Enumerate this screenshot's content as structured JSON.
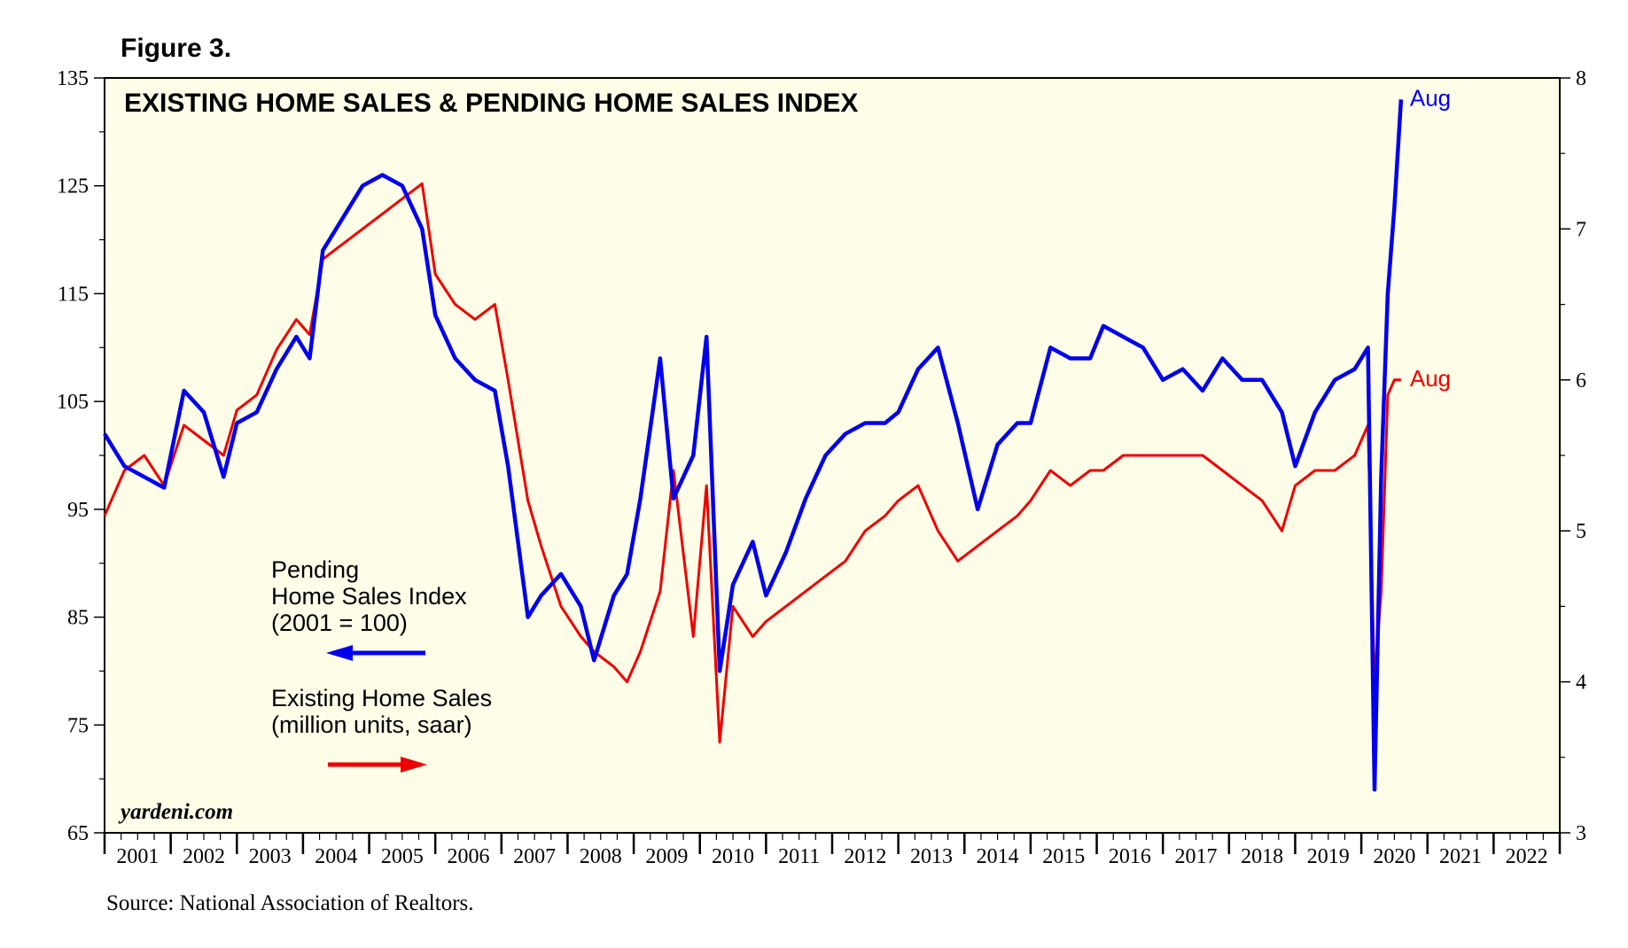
{
  "figure_label": "Figure 3.",
  "source": "Source: National Association of Realtors.",
  "colors": {
    "pending": "#0000ee",
    "existing": "#ee0000",
    "plot_bg": "#fefde8",
    "axis": "#000000"
  },
  "chart_data": {
    "type": "line",
    "title": "EXISTING HOME SALES & PENDING HOME SALES INDEX",
    "watermark": "yardeni.com",
    "x_range": [
      2001,
      2023
    ],
    "x_tick_labels": [
      "2001",
      "2002",
      "2003",
      "2004",
      "2005",
      "2006",
      "2007",
      "2008",
      "2009",
      "2010",
      "2011",
      "2012",
      "2013",
      "2014",
      "2015",
      "2016",
      "2017",
      "2018",
      "2019",
      "2020",
      "2021",
      "2022"
    ],
    "y_left": {
      "range": [
        65,
        135
      ],
      "ticks": [
        65,
        75,
        85,
        95,
        105,
        115,
        125,
        135
      ]
    },
    "y_right": {
      "range": [
        3,
        8
      ],
      "ticks": [
        3,
        4,
        5,
        6,
        7,
        8
      ]
    },
    "legend": [
      {
        "lines": [
          "Pending",
          "Home Sales Index",
          "(2001 = 100)"
        ],
        "arrow": "left"
      },
      {
        "lines": [
          "Existing Home Sales",
          "(million units, saar)"
        ],
        "arrow": "right"
      }
    ],
    "series": [
      {
        "name": "Pending Home Sales Index (2001 = 100)",
        "axis": "left",
        "end_label": "Aug",
        "x": [
          2001.0,
          2001.3,
          2001.6,
          2001.9,
          2002.2,
          2002.5,
          2002.8,
          2003.0,
          2003.3,
          2003.6,
          2003.9,
          2004.1,
          2004.3,
          2004.6,
          2004.9,
          2005.2,
          2005.5,
          2005.8,
          2006.0,
          2006.3,
          2006.6,
          2006.9,
          2007.1,
          2007.4,
          2007.6,
          2007.9,
          2008.2,
          2008.4,
          2008.7,
          2008.9,
          2009.1,
          2009.4,
          2009.6,
          2009.9,
          2010.1,
          2010.3,
          2010.5,
          2010.8,
          2011.0,
          2011.3,
          2011.6,
          2011.9,
          2012.2,
          2012.5,
          2012.8,
          2013.0,
          2013.3,
          2013.6,
          2013.9,
          2014.2,
          2014.5,
          2014.8,
          2015.0,
          2015.3,
          2015.6,
          2015.9,
          2016.1,
          2016.4,
          2016.7,
          2017.0,
          2017.3,
          2017.6,
          2017.9,
          2018.2,
          2018.5,
          2018.8,
          2019.0,
          2019.3,
          2019.6,
          2019.9,
          2020.1,
          2020.2,
          2020.3,
          2020.4,
          2020.5,
          2020.6
        ],
        "y": [
          102,
          99,
          98,
          97,
          106,
          104,
          98,
          103,
          104,
          108,
          111,
          109,
          119,
          122,
          125,
          126,
          125,
          121,
          113,
          109,
          107,
          106,
          99,
          85,
          87,
          89,
          86,
          81,
          87,
          89,
          96,
          109,
          96,
          100,
          111,
          80,
          88,
          92,
          87,
          91,
          96,
          100,
          102,
          103,
          103,
          104,
          108,
          110,
          103,
          95,
          101,
          103,
          103,
          110,
          109,
          109,
          112,
          111,
          110,
          107,
          108,
          106,
          109,
          107,
          107,
          104,
          99,
          104,
          107,
          108,
          110,
          69,
          98,
          115,
          123,
          133
        ]
      },
      {
        "name": "Existing Home Sales (million units, saar)",
        "axis": "right",
        "end_label": "Aug",
        "x": [
          2001.0,
          2001.3,
          2001.6,
          2001.9,
          2002.2,
          2002.5,
          2002.8,
          2003.0,
          2003.3,
          2003.6,
          2003.9,
          2004.1,
          2004.3,
          2004.6,
          2004.9,
          2005.2,
          2005.5,
          2005.8,
          2006.0,
          2006.3,
          2006.6,
          2006.9,
          2007.1,
          2007.4,
          2007.6,
          2007.9,
          2008.2,
          2008.4,
          2008.7,
          2008.9,
          2009.1,
          2009.4,
          2009.6,
          2009.9,
          2010.1,
          2010.3,
          2010.5,
          2010.8,
          2011.0,
          2011.3,
          2011.6,
          2011.9,
          2012.2,
          2012.5,
          2012.8,
          2013.0,
          2013.3,
          2013.6,
          2013.9,
          2014.2,
          2014.5,
          2014.8,
          2015.0,
          2015.3,
          2015.6,
          2015.9,
          2016.1,
          2016.4,
          2016.7,
          2017.0,
          2017.3,
          2017.6,
          2017.9,
          2018.2,
          2018.5,
          2018.8,
          2019.0,
          2019.3,
          2019.6,
          2019.9,
          2020.1,
          2020.2,
          2020.3,
          2020.4,
          2020.5,
          2020.6
        ],
        "y": [
          5.1,
          5.4,
          5.5,
          5.3,
          5.7,
          5.6,
          5.5,
          5.8,
          5.9,
          6.2,
          6.4,
          6.3,
          6.8,
          6.9,
          7.0,
          7.1,
          7.2,
          7.3,
          6.7,
          6.5,
          6.4,
          6.5,
          6.0,
          5.2,
          4.9,
          4.5,
          4.3,
          4.2,
          4.1,
          4.0,
          4.2,
          4.6,
          5.4,
          4.3,
          5.3,
          3.6,
          4.5,
          4.3,
          4.4,
          4.5,
          4.6,
          4.7,
          4.8,
          5.0,
          5.1,
          5.2,
          5.3,
          5.0,
          4.8,
          4.9,
          5.0,
          5.1,
          5.2,
          5.4,
          5.3,
          5.4,
          5.4,
          5.5,
          5.5,
          5.5,
          5.5,
          5.5,
          5.4,
          5.3,
          5.2,
          5.0,
          5.3,
          5.4,
          5.4,
          5.5,
          5.7,
          4.0,
          4.6,
          5.9,
          6.0,
          6.0
        ]
      }
    ]
  }
}
